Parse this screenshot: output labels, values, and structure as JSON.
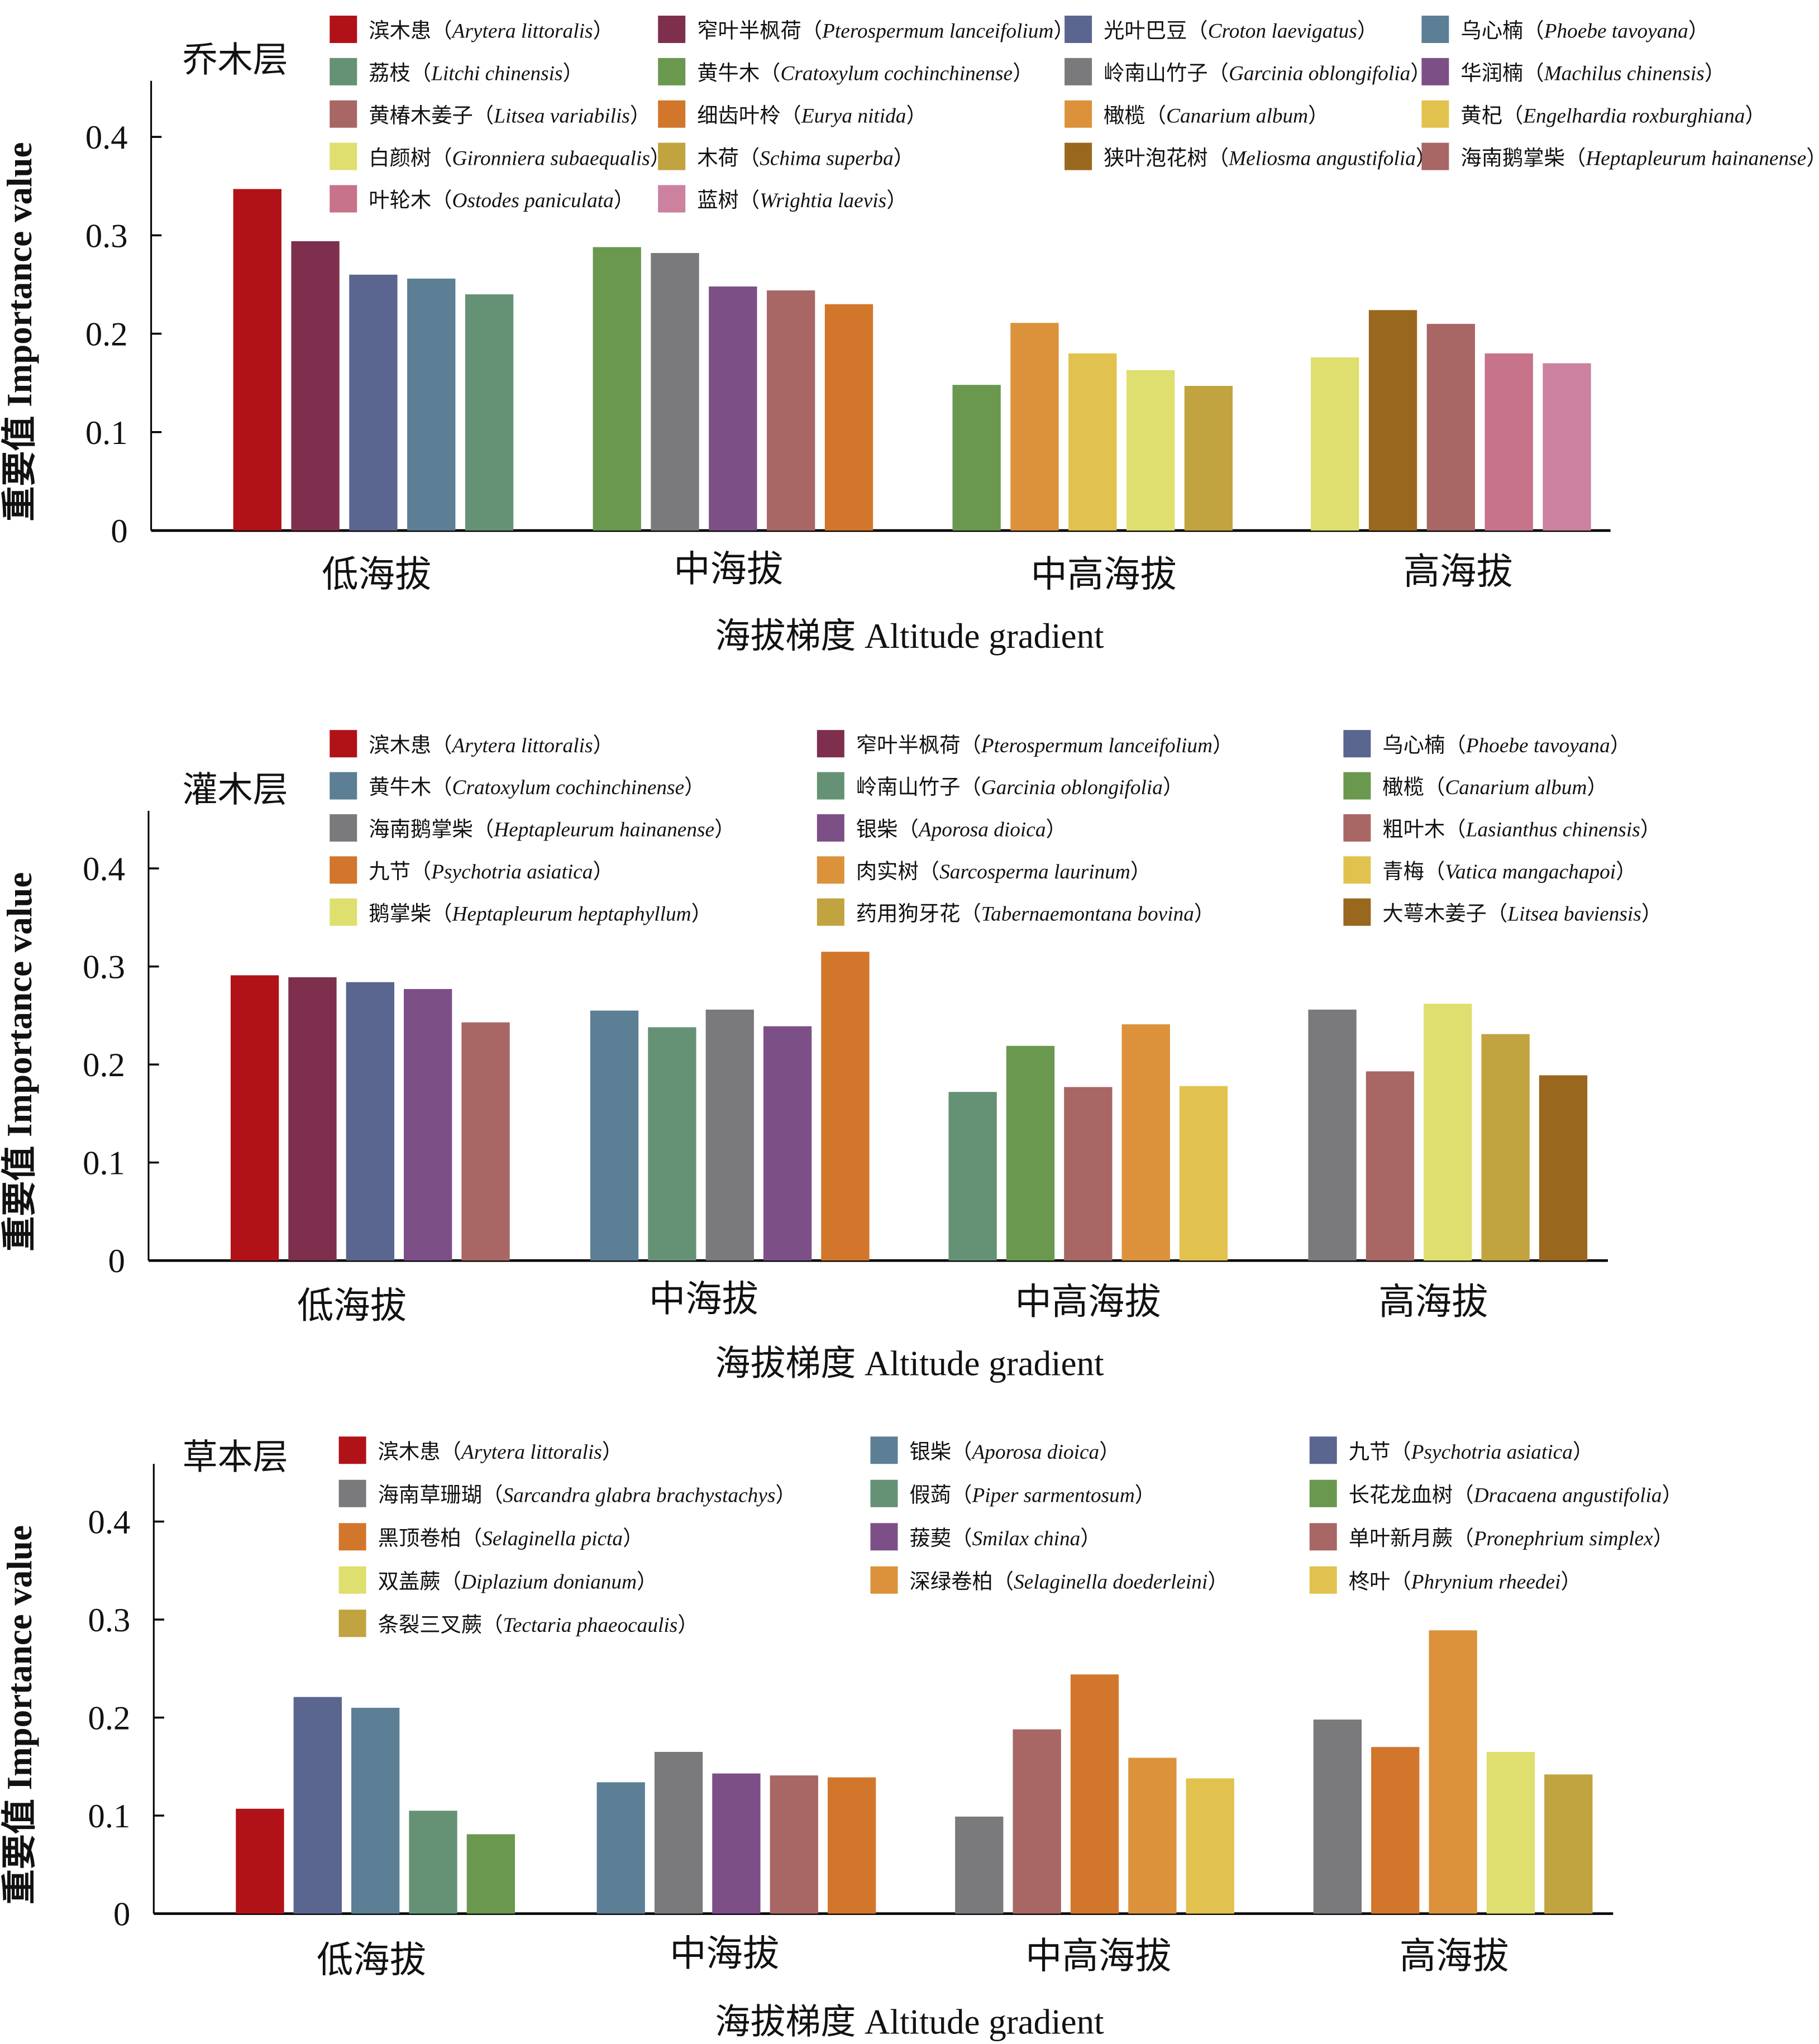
{
  "figure": {
    "xlabel": "海拔梯度 Altitude gradient",
    "ylabel": "重要值 Importance value"
  },
  "chart_data": [
    {
      "type": "bar",
      "title": "乔木层",
      "xlabel": "海拔梯度 Altitude gradient",
      "ylabel": "重要值 Importance value",
      "ylim": [
        0,
        0.45
      ],
      "yticks": [
        "0",
        "0.1",
        "0.2",
        "0.3",
        "0.4"
      ],
      "categories": [
        "低海拔",
        "中海拔",
        "中高海拔",
        "高海拔"
      ],
      "legend": [
        {
          "cn": "滨木患",
          "latin": "Arytera littoralis",
          "color": "#B11218"
        },
        {
          "cn": "窄叶半枫荷",
          "latin": "Pterospermum lanceifolium",
          "color": "#7E2F4E"
        },
        {
          "cn": "光叶巴豆",
          "latin": "Croton laevigatus",
          "color": "#5A6590"
        },
        {
          "cn": "乌心楠",
          "latin": "Phoebe tavoyana",
          "color": "#5C7F95"
        },
        {
          "cn": "荔枝",
          "latin": "Litchi chinensis",
          "color": "#659275"
        },
        {
          "cn": "黄牛木",
          "latin": "Cratoxylum cochinchinense",
          "color": "#6A984F"
        },
        {
          "cn": "岭南山竹子",
          "latin": "Garcinia oblongifolia",
          "color": "#7A7A7D"
        },
        {
          "cn": "华润楠",
          "latin": "Machilus chinensis",
          "color": "#7D4F87"
        },
        {
          "cn": "黄椿木姜子",
          "latin": "Litsea variabilis",
          "color": "#A86764"
        },
        {
          "cn": "细齿叶柃",
          "latin": "Eurya nitida",
          "color": "#D2762C"
        },
        {
          "cn": "橄榄",
          "latin": "Canarium album",
          "color": "#DC923A"
        },
        {
          "cn": "黄杞",
          "latin": "Engelhardia roxburghiana",
          "color": "#E2C24E"
        },
        {
          "cn": "白颜树",
          "latin": "Gironniera subaequalis",
          "color": "#DEDF6E"
        },
        {
          "cn": "木荷",
          "latin": "Schima superba",
          "color": "#C1A33F"
        },
        {
          "cn": "狭叶泡花树",
          "latin": "Meliosma angustifolia",
          "color": "#9A671E"
        },
        {
          "cn": "海南鹅掌柴",
          "latin": "Heptapleurum hainanense",
          "color": "#A86764"
        },
        {
          "cn": "叶轮木",
          "latin": "Ostodes paniculata",
          "color": "#C7738A"
        },
        {
          "cn": "蓝树",
          "latin": "Wrightia laevis",
          "color": "#CC819F"
        }
      ],
      "legend_columns": 4,
      "groups": [
        {
          "category": "低海拔",
          "bars": [
            {
              "species": "滨木患",
              "value": 0.347
            },
            {
              "species": "窄叶半枫荷",
              "value": 0.294
            },
            {
              "species": "光叶巴豆",
              "value": 0.26
            },
            {
              "species": "乌心楠",
              "value": 0.256
            },
            {
              "species": "荔枝",
              "value": 0.24
            }
          ]
        },
        {
          "category": "中海拔",
          "bars": [
            {
              "species": "黄牛木",
              "value": 0.288
            },
            {
              "species": "岭南山竹子",
              "value": 0.282
            },
            {
              "species": "华润楠",
              "value": 0.248
            },
            {
              "species": "黄椿木姜子",
              "value": 0.244
            },
            {
              "species": "细齿叶柃",
              "value": 0.23
            }
          ]
        },
        {
          "category": "中高海拔",
          "bars": [
            {
              "species": "黄牛木",
              "value": 0.148
            },
            {
              "species": "橄榄",
              "value": 0.211
            },
            {
              "species": "黄杞",
              "value": 0.18
            },
            {
              "species": "白颜树",
              "value": 0.163
            },
            {
              "species": "木荷",
              "value": 0.147
            }
          ]
        },
        {
          "category": "高海拔",
          "bars": [
            {
              "species": "白颜树",
              "value": 0.176
            },
            {
              "species": "狭叶泡花树",
              "value": 0.224
            },
            {
              "species": "海南鹅掌柴",
              "value": 0.21
            },
            {
              "species": "叶轮木",
              "value": 0.18
            },
            {
              "species": "蓝树",
              "value": 0.17
            }
          ]
        }
      ]
    },
    {
      "type": "bar",
      "title": "灌木层",
      "xlabel": "海拔梯度 Altitude gradient",
      "ylabel": "重要值 Importance value",
      "ylim": [
        0,
        0.45
      ],
      "yticks": [
        "0",
        "0.1",
        "0.2",
        "0.3",
        "0.4"
      ],
      "categories": [
        "低海拔",
        "中海拔",
        "中高海拔",
        "高海拔"
      ],
      "legend": [
        {
          "cn": "滨木患",
          "latin": "Arytera littoralis",
          "color": "#B11218"
        },
        {
          "cn": "窄叶半枫荷",
          "latin": "Pterospermum lanceifolium",
          "color": "#7E2F4E"
        },
        {
          "cn": "乌心楠",
          "latin": "Phoebe tavoyana",
          "color": "#5A6590"
        },
        {
          "cn": "黄牛木",
          "latin": "Cratoxylum cochinchinense",
          "color": "#5C7F95"
        },
        {
          "cn": "岭南山竹子",
          "latin": "Garcinia oblongifolia",
          "color": "#659275"
        },
        {
          "cn": "橄榄",
          "latin": "Canarium album",
          "color": "#6A984F"
        },
        {
          "cn": "海南鹅掌柴",
          "latin": "Heptapleurum hainanense",
          "color": "#7A7A7D"
        },
        {
          "cn": "银柴",
          "latin": "Aporosa dioica",
          "color": "#7D4F87"
        },
        {
          "cn": "粗叶木",
          "latin": "Lasianthus chinensis",
          "color": "#A86764"
        },
        {
          "cn": "九节",
          "latin": "Psychotria asiatica",
          "color": "#D2762C"
        },
        {
          "cn": "肉实树",
          "latin": "Sarcosperma laurinum",
          "color": "#DC923A"
        },
        {
          "cn": "青梅",
          "latin": "Vatica mangachapoi",
          "color": "#E2C24E"
        },
        {
          "cn": "鹅掌柴",
          "latin": "Heptapleurum heptaphyllum",
          "color": "#DEDF6E"
        },
        {
          "cn": "药用狗牙花",
          "latin": "Tabernaemontana bovina",
          "color": "#C1A33F"
        },
        {
          "cn": "大萼木姜子",
          "latin": "Litsea baviensis",
          "color": "#9A671E"
        }
      ],
      "legend_columns": 3,
      "groups": [
        {
          "category": "低海拔",
          "bars": [
            {
              "species": "滨木患",
              "value": 0.291
            },
            {
              "species": "窄叶半枫荷",
              "value": 0.289
            },
            {
              "species": "乌心楠",
              "value": 0.284
            },
            {
              "species": "银柴",
              "value": 0.277
            },
            {
              "species": "粗叶木",
              "value": 0.243
            }
          ]
        },
        {
          "category": "中海拔",
          "bars": [
            {
              "species": "黄牛木",
              "value": 0.255
            },
            {
              "species": "岭南山竹子",
              "value": 0.238
            },
            {
              "species": "海南鹅掌柴",
              "value": 0.256
            },
            {
              "species": "银柴",
              "value": 0.239
            },
            {
              "species": "九节",
              "value": 0.315
            }
          ]
        },
        {
          "category": "中高海拔",
          "bars": [
            {
              "species": "岭南山竹子",
              "value": 0.172
            },
            {
              "species": "橄榄",
              "value": 0.219
            },
            {
              "species": "粗叶木",
              "value": 0.177
            },
            {
              "species": "肉实树",
              "value": 0.241
            },
            {
              "species": "青梅",
              "value": 0.178
            }
          ]
        },
        {
          "category": "高海拔",
          "bars": [
            {
              "species": "海南鹅掌柴",
              "value": 0.256
            },
            {
              "species": "粗叶木",
              "value": 0.193
            },
            {
              "species": "鹅掌柴",
              "value": 0.262
            },
            {
              "species": "药用狗牙花",
              "value": 0.231
            },
            {
              "species": "大萼木姜子",
              "value": 0.189
            }
          ]
        }
      ]
    },
    {
      "type": "bar",
      "title": "草本层",
      "xlabel": "海拔梯度 Altitude gradient",
      "ylabel": "重要值 Importance value",
      "ylim": [
        0,
        0.45
      ],
      "yticks": [
        "0",
        "0.1",
        "0.2",
        "0.3",
        "0.4"
      ],
      "categories": [
        "低海拔",
        "中海拔",
        "中高海拔",
        "高海拔"
      ],
      "legend": [
        {
          "cn": "滨木患",
          "latin": "Arytera littoralis",
          "color": "#B11218"
        },
        {
          "cn": "银柴",
          "latin": "Aporosa dioica",
          "color": "#5C7F95"
        },
        {
          "cn": "九节",
          "latin": "Psychotria asiatica",
          "color": "#5A6590"
        },
        {
          "cn": "海南草珊瑚",
          "latin": "Sarcandra glabra brachystachys",
          "color": "#7A7A7D"
        },
        {
          "cn": "假蒟",
          "latin": "Piper sarmentosum",
          "color": "#659275"
        },
        {
          "cn": "长花龙血树",
          "latin": "Dracaena angustifolia",
          "color": "#6A984F"
        },
        {
          "cn": "黑顶卷柏",
          "latin": "Selaginella picta",
          "color": "#D2762C"
        },
        {
          "cn": "菝葜",
          "latin": "Smilax china",
          "color": "#7D4F87"
        },
        {
          "cn": "单叶新月蕨",
          "latin": "Pronephrium simplex",
          "color": "#A86764"
        },
        {
          "cn": "双盖蕨",
          "latin": "Diplazium donianum",
          "color": "#DEDF6E"
        },
        {
          "cn": "深绿卷柏",
          "latin": "Selaginella doederleini",
          "color": "#DC923A"
        },
        {
          "cn": "柊叶",
          "latin": "Phrynium rheedei",
          "color": "#E2C24E"
        },
        {
          "cn": "条裂三叉蕨",
          "latin": "Tectaria phaeocaulis",
          "color": "#C1A33F"
        }
      ],
      "legend_columns": 3,
      "groups": [
        {
          "category": "低海拔",
          "bars": [
            {
              "species": "滨木患",
              "value": 0.107
            },
            {
              "species": "九节",
              "value": 0.221
            },
            {
              "species": "银柴",
              "value": 0.21
            },
            {
              "species": "假蒟",
              "value": 0.105
            },
            {
              "species": "长花龙血树",
              "value": 0.081
            }
          ]
        },
        {
          "category": "中海拔",
          "bars": [
            {
              "species": "银柴",
              "value": 0.134
            },
            {
              "species": "海南草珊瑚",
              "value": 0.165
            },
            {
              "species": "菝葜",
              "value": 0.143
            },
            {
              "species": "单叶新月蕨",
              "value": 0.141
            },
            {
              "species": "黑顶卷柏",
              "value": 0.139
            }
          ]
        },
        {
          "category": "中高海拔",
          "bars": [
            {
              "species": "海南草珊瑚",
              "value": 0.099
            },
            {
              "species": "单叶新月蕨",
              "value": 0.188
            },
            {
              "species": "黑顶卷柏",
              "value": 0.244
            },
            {
              "species": "深绿卷柏",
              "value": 0.159
            },
            {
              "species": "柊叶",
              "value": 0.138
            }
          ]
        },
        {
          "category": "高海拔",
          "bars": [
            {
              "species": "海南草珊瑚",
              "value": 0.198
            },
            {
              "species": "黑顶卷柏",
              "value": 0.17
            },
            {
              "species": "深绿卷柏",
              "value": 0.289
            },
            {
              "species": "双盖蕨",
              "value": 0.165
            },
            {
              "species": "条裂三叉蕨",
              "value": 0.142
            }
          ]
        }
      ]
    }
  ]
}
